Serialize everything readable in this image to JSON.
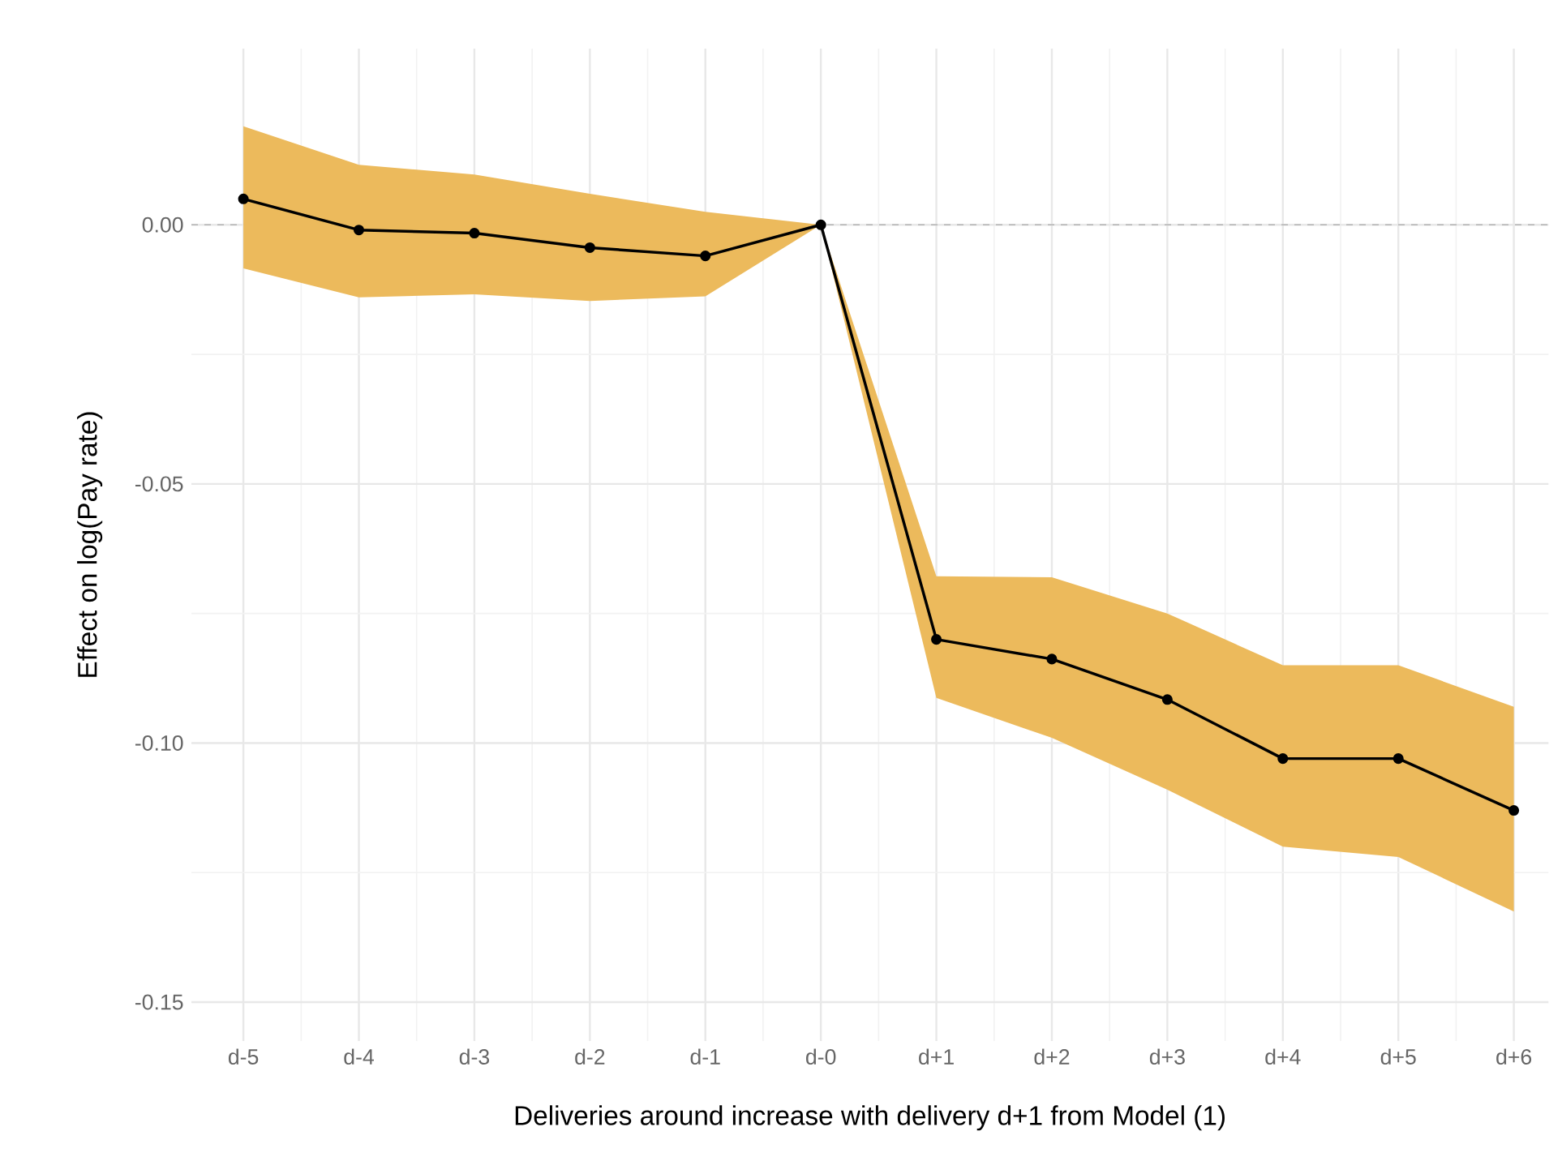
{
  "chart_data": {
    "type": "line",
    "xlabel": "Deliveries around increase with delivery d+1 from Model (1)",
    "ylabel": "Effect on log(Pay rate)",
    "categories": [
      "d-5",
      "d-4",
      "d-3",
      "d-2",
      "d-1",
      "d-0",
      "d+1",
      "d+2",
      "d+3",
      "d+4",
      "d+5",
      "d+6"
    ],
    "series": [
      {
        "color": "#000000",
        "values": [
          0.005,
          -0.001,
          -0.0016,
          -0.0044,
          -0.006,
          0,
          -0.08,
          -0.0838,
          -0.0916,
          -0.103,
          -0.103,
          -0.113
        ],
        "lower": [
          -0.0084,
          -0.014,
          -0.0134,
          -0.0147,
          -0.0138,
          0,
          -0.0913,
          -0.099,
          -0.109,
          -0.12,
          -0.122,
          -0.1325
        ],
        "upper": [
          0.019,
          0.0116,
          0.0097,
          0.006,
          0.0025,
          0,
          -0.0678,
          -0.068,
          -0.075,
          -0.085,
          -0.085,
          -0.093
        ]
      }
    ],
    "ylim": [
      -0.1575,
      0.034
    ],
    "yticks": [
      {
        "value": -0.15,
        "label": "-0.15"
      },
      {
        "value": -0.1,
        "label": "-0.10"
      },
      {
        "value": -0.05,
        "label": "-0.05"
      },
      {
        "value": 0,
        "label": "0.00"
      }
    ],
    "ref_lines": [
      {
        "axis": "y",
        "value": 0,
        "color": "#b3b3b3",
        "line_style": "dashed"
      }
    ],
    "grid": true,
    "marker": "circle",
    "line_style": "solid"
  }
}
